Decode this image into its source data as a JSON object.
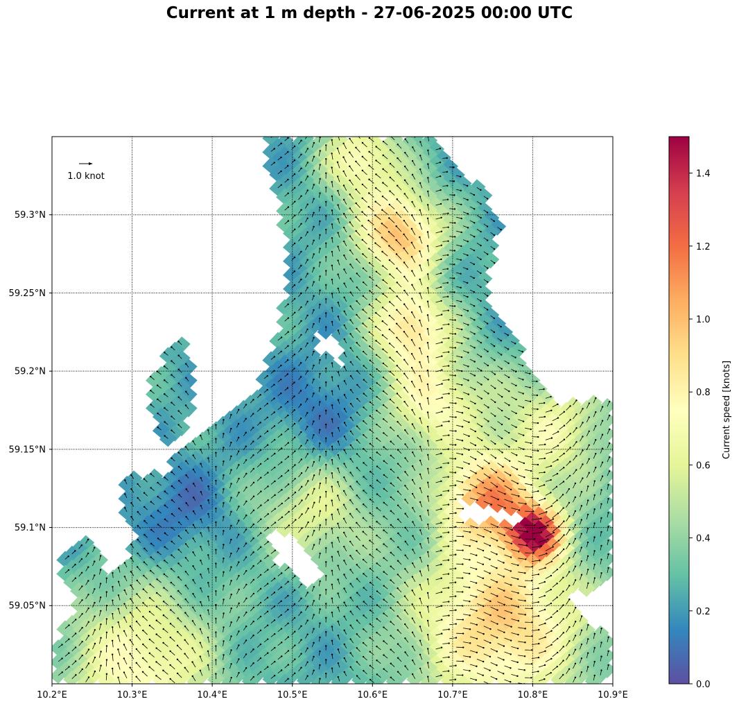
{
  "title": "Current at 1 m depth - 27-06-2025 00:00 UTC",
  "map": {
    "lon_range": [
      10.2,
      10.9
    ],
    "lat_range": [
      59.0,
      59.35
    ],
    "x_tick_labels": [
      "10.2°E",
      "10.3°E",
      "10.4°E",
      "10.5°E",
      "10.6°E",
      "10.7°E",
      "10.8°E",
      "10.9°E"
    ],
    "y_tick_labels": [
      "59.05°N",
      "59.1°N",
      "59.15°N",
      "59.2°N",
      "59.25°N",
      "59.3°N"
    ],
    "grid": "dotted",
    "quiver_key_label": "1.0 knot"
  },
  "colorbar": {
    "label": "Current speed [knots]",
    "range": [
      0.0,
      1.5
    ],
    "tick_labels": [
      "0.0",
      "0.2",
      "0.4",
      "0.6",
      "0.8",
      "1.0",
      "1.2",
      "1.4"
    ],
    "colormap": "Spectral_r",
    "colors": [
      "#5e4fa2",
      "#3288bd",
      "#66c2a5",
      "#abdda4",
      "#e6f598",
      "#ffffbf",
      "#fee08b",
      "#fdae61",
      "#f46d43",
      "#d53e4f",
      "#9e0142"
    ]
  }
}
